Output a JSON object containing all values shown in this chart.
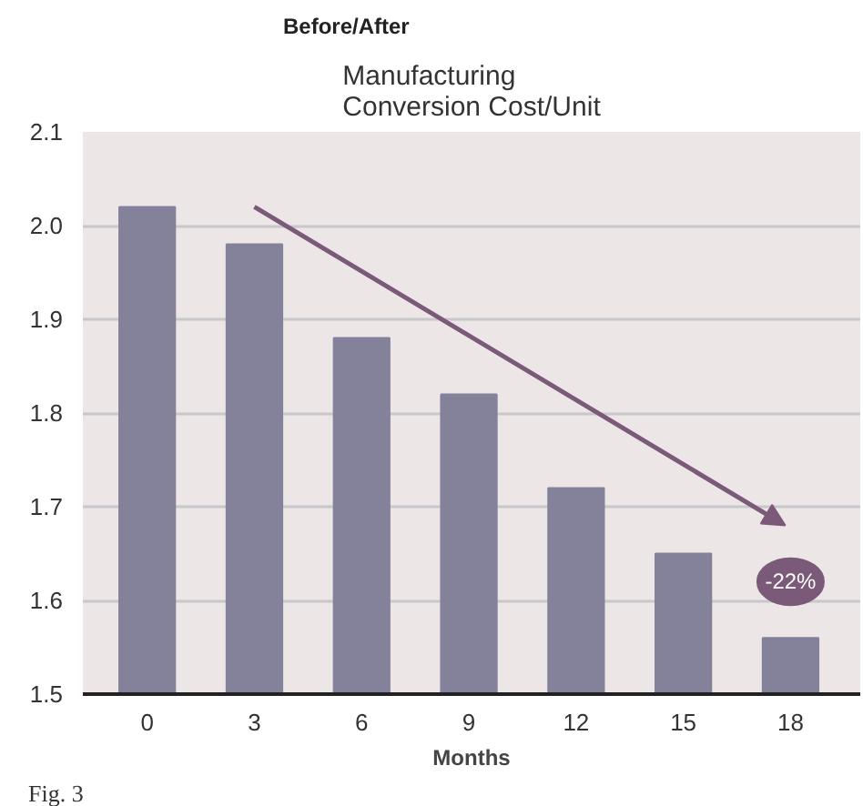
{
  "chart_data": {
    "type": "bar",
    "title": "Before/After",
    "subtitle": "Manufacturing\nConversion Cost/Unit",
    "xlabel": "Months",
    "categories": [
      "0",
      "3",
      "6",
      "9",
      "12",
      "15",
      "18"
    ],
    "values": [
      2.02,
      1.98,
      1.88,
      1.82,
      1.72,
      1.65,
      1.56
    ],
    "color": "#84819a",
    "ylim": [
      1.5,
      2.1
    ],
    "yticks": [
      {
        "value": 1.5,
        "label": "1.5"
      },
      {
        "value": 1.6,
        "label": "1.6"
      },
      {
        "value": 1.7,
        "label": "1.7"
      },
      {
        "value": 1.8,
        "label": "1.8"
      },
      {
        "value": 1.9,
        "label": "1.9"
      },
      {
        "value": 2.0,
        "label": "2.0"
      },
      {
        "value": 2.1,
        "label": "2.1"
      }
    ],
    "grid": "y",
    "annotations": [
      {
        "text": "-22%",
        "x": "18",
        "y": 1.62
      },
      "Fig. 3"
    ]
  }
}
